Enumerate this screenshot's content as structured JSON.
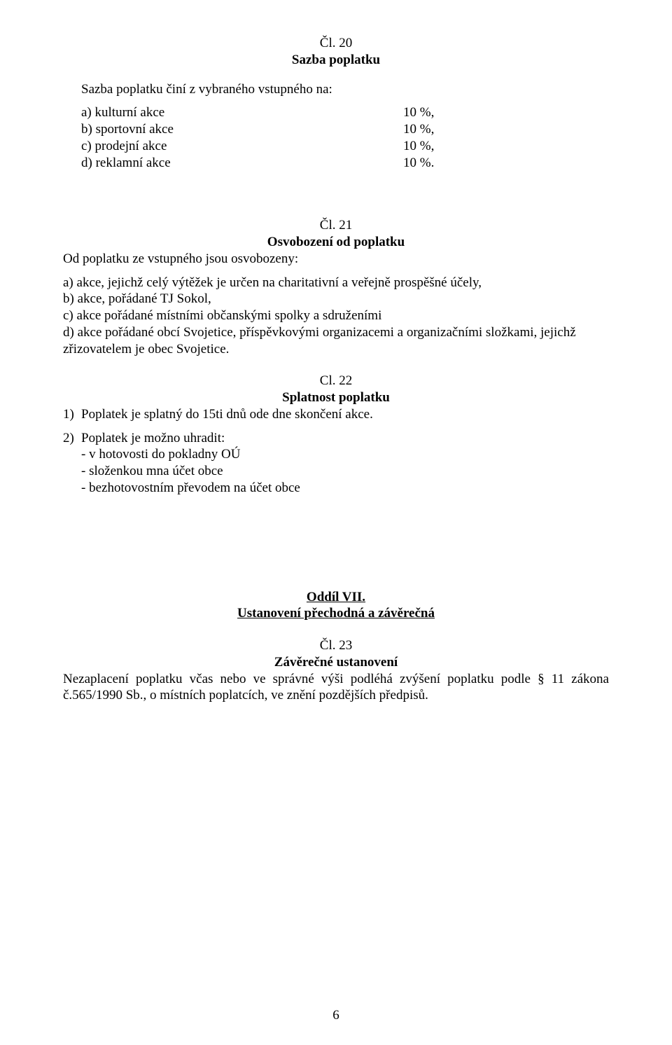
{
  "article20": {
    "heading_num": "Čl. 20",
    "heading_title": "Sazba poplatku",
    "intro": "Sazba poplatku činí z vybraného vstupného na:",
    "items": [
      {
        "label": "a)  kulturní akce",
        "value": "10 %,"
      },
      {
        "label": "b)  sportovní akce",
        "value": "10 %,"
      },
      {
        "label": "c)  prodejní akce",
        "value": "10 %,"
      },
      {
        "label": "d)  reklamní akce",
        "value": "10 %."
      }
    ]
  },
  "article21": {
    "heading_num": "Čl. 21",
    "heading_title": "Osvobození od poplatku",
    "intro": "Od poplatku ze vstupného jsou osvobozeny:",
    "a": " a) akce, jejichž celý výtěžek je určen na charitativní a veřejně prospěšné účely,",
    "b": " b) akce, pořádané TJ Sokol,",
    "c": " c) akce pořádané místními občanskými spolky a sdruženími",
    "d": " d) akce pořádané obcí Svojetice, příspěvkovými organizacemi a organizačními složkami, jejichž zřizovatelem je obec Svojetice."
  },
  "article22": {
    "heading_num": "Cl. 22",
    "heading_title": "Splatnost poplatku",
    "item1_num": "1)",
    "item1_text": "Poplatek je splatný do 15ti dnů ode dne skončení akce.",
    "item2_num": "2)",
    "item2_text": "Poplatek je možno uhradit:",
    "sub1": "-  v hotovosti do pokladny OÚ",
    "sub2": "-  složenkou mna účet obce",
    "sub3": "-  bezhotovostním převodem na účet obce"
  },
  "section7": {
    "heading": "Oddíl VII.",
    "subheading": "Ustanovení přechodná a závěrečná"
  },
  "article23": {
    "heading_num": "Čl. 23",
    "heading_title": "Závěrečné ustanovení",
    "body": "Nezaplacení poplatku včas nebo ve správné výši podléhá zvýšení poplatku podle § 11 zákona č.565/1990 Sb., o místních poplatcích, ve znění pozdějších předpisů."
  },
  "page_number": "6"
}
